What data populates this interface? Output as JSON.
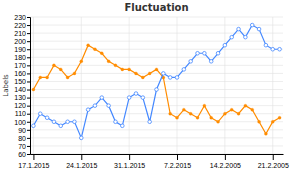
{
  "chart_data": {
    "type": "line",
    "title": "Fluctuation",
    "y_label": "Labels",
    "categories": [
      "17.1.2015",
      null,
      null,
      null,
      null,
      null,
      null,
      "24.1.2015",
      null,
      null,
      null,
      null,
      null,
      null,
      "31.1.2015",
      null,
      null,
      null,
      null,
      null,
      null,
      "7.2.2015",
      null,
      null,
      null,
      null,
      null,
      null,
      "14.2.2005",
      null,
      null,
      null,
      null,
      null,
      null,
      "21.2.2005",
      null
    ],
    "series": [
      {
        "color": "#ff8c00",
        "marker": "circle",
        "values": [
          140,
          155,
          155,
          170,
          165,
          155,
          160,
          175,
          195,
          190,
          185,
          175,
          170,
          165,
          165,
          160,
          155,
          160,
          165,
          155,
          110,
          105,
          115,
          110,
          105,
          120,
          105,
          100,
          110,
          115,
          110,
          120,
          115,
          100,
          85,
          100,
          105
        ]
      },
      {
        "color": "#4488ff",
        "marker": "open-circle",
        "values": [
          95,
          110,
          105,
          100,
          95,
          100,
          100,
          80,
          115,
          120,
          130,
          120,
          100,
          95,
          130,
          135,
          130,
          100,
          140,
          160,
          155,
          155,
          165,
          175,
          185,
          185,
          175,
          185,
          195,
          205,
          215,
          205,
          220,
          215,
          195,
          190,
          190
        ]
      }
    ],
    "ylim": [
      60,
      230
    ],
    "yticks": [
      60,
      70,
      80,
      90,
      100,
      110,
      120,
      130,
      140,
      150,
      160,
      170,
      180,
      190,
      200,
      210,
      220,
      230
    ],
    "grid": true
  }
}
